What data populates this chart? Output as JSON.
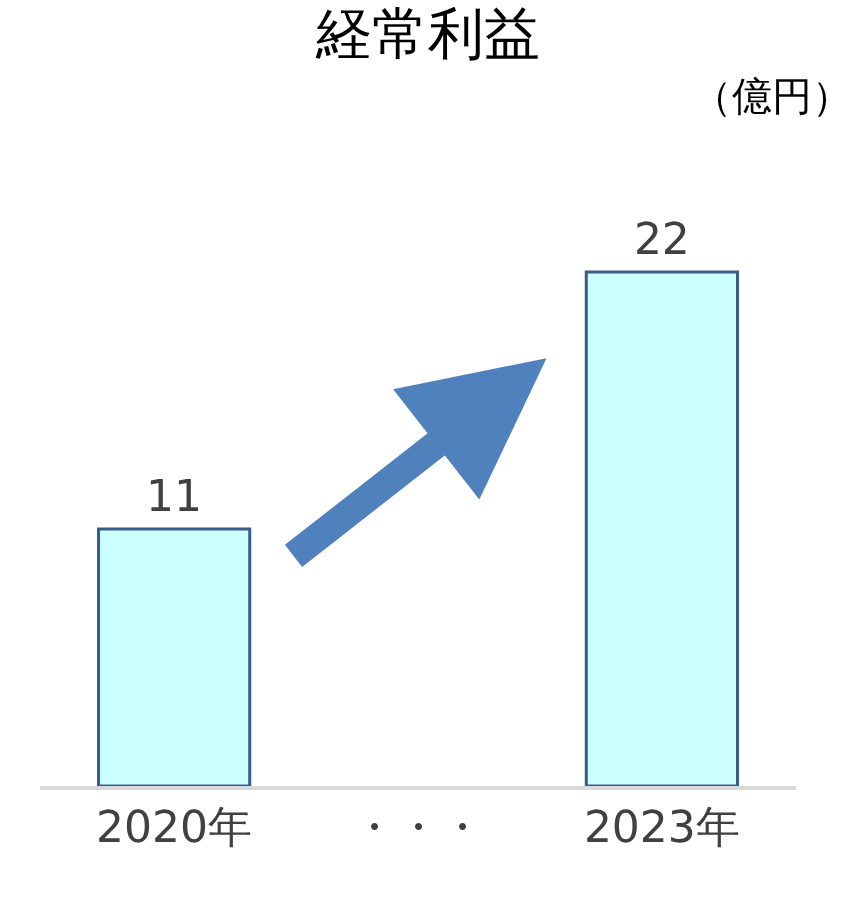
{
  "chart_data": {
    "type": "bar",
    "title": "経常利益",
    "annotations": [
      "（億円）"
    ],
    "categories": [
      "2020年",
      "・・・",
      "2023年"
    ],
    "values": [
      11,
      null,
      22
    ],
    "color": "#ccffff",
    "data_labels": true,
    "legend": false
  }
}
